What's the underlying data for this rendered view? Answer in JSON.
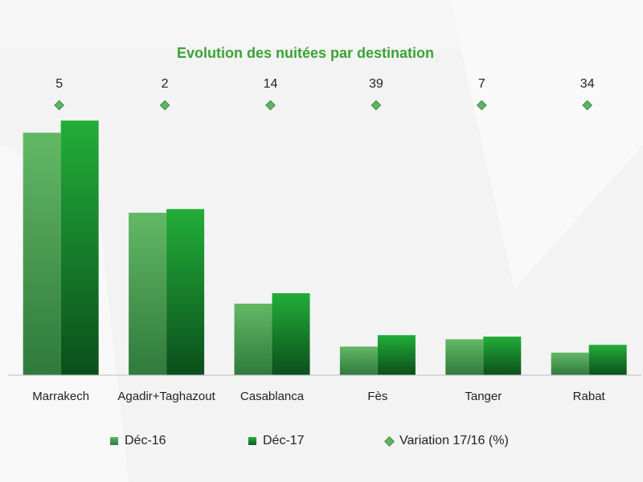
{
  "chart_data": {
    "type": "bar",
    "title": "Evolution des nuitées par destination",
    "categories": [
      "Marrakech",
      "Agadir+Taghazout",
      "Casablanca",
      "Fès",
      "Tanger",
      "Rabat"
    ],
    "series": [
      {
        "name": "Déc-16",
        "values": [
          100,
          67,
          29.5,
          11.8,
          14.8,
          9.3
        ],
        "color": "#4fae56"
      },
      {
        "name": "Déc-17",
        "values": [
          105,
          68.5,
          33.8,
          16.5,
          15.9,
          12.5
        ],
        "color": "#17a02e"
      }
    ],
    "variation": {
      "name": "Variation 17/16 (%)",
      "values": [
        "5",
        "2",
        "14",
        "39",
        "7",
        "34"
      ],
      "color": "#5fb466"
    },
    "ylim": [
      0,
      110
    ],
    "grid": false,
    "legend_position": "bottom"
  }
}
